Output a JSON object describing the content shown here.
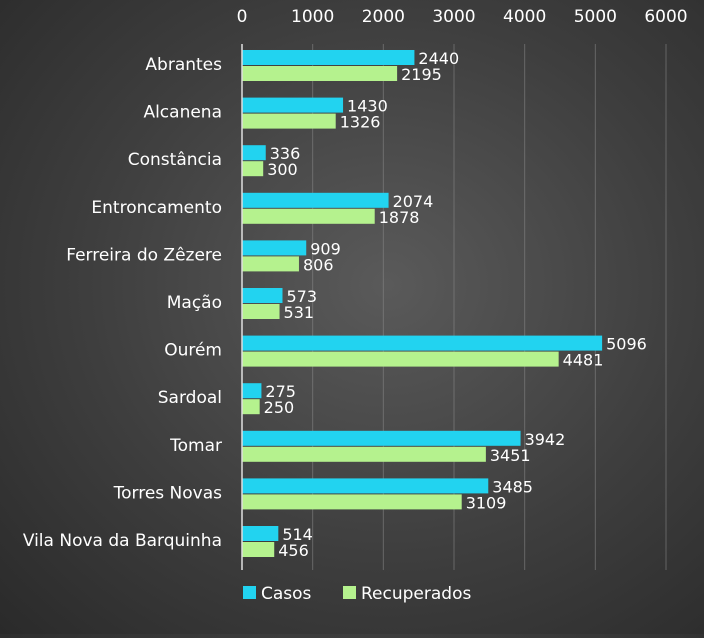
{
  "chart_data": {
    "type": "bar",
    "orientation": "horizontal",
    "categories": [
      "Abrantes",
      "Alcanena",
      "Constância",
      "Entroncamento",
      "Ferreira do Zêzere",
      "Mação",
      "Ourém",
      "Sardoal",
      "Tomar",
      "Torres Novas",
      "Vila Nova da Barquinha"
    ],
    "series": [
      {
        "name": "Casos",
        "color": "#22d3f0",
        "values": [
          2440,
          1430,
          336,
          2074,
          909,
          573,
          5096,
          275,
          3942,
          3485,
          514
        ]
      },
      {
        "name": "Recuperados",
        "color": "#b5f28e",
        "values": [
          2195,
          1326,
          300,
          1878,
          806,
          531,
          4481,
          250,
          3451,
          3109,
          456
        ]
      }
    ],
    "x_ticks": [
      "0",
      "1000",
      "2000",
      "3000",
      "4000",
      "5000",
      "6000"
    ],
    "xlim": [
      0,
      6000
    ],
    "axis_position": "top",
    "grid": true,
    "legend": "bottom-left",
    "title": "",
    "xlabel": "",
    "ylabel": ""
  }
}
